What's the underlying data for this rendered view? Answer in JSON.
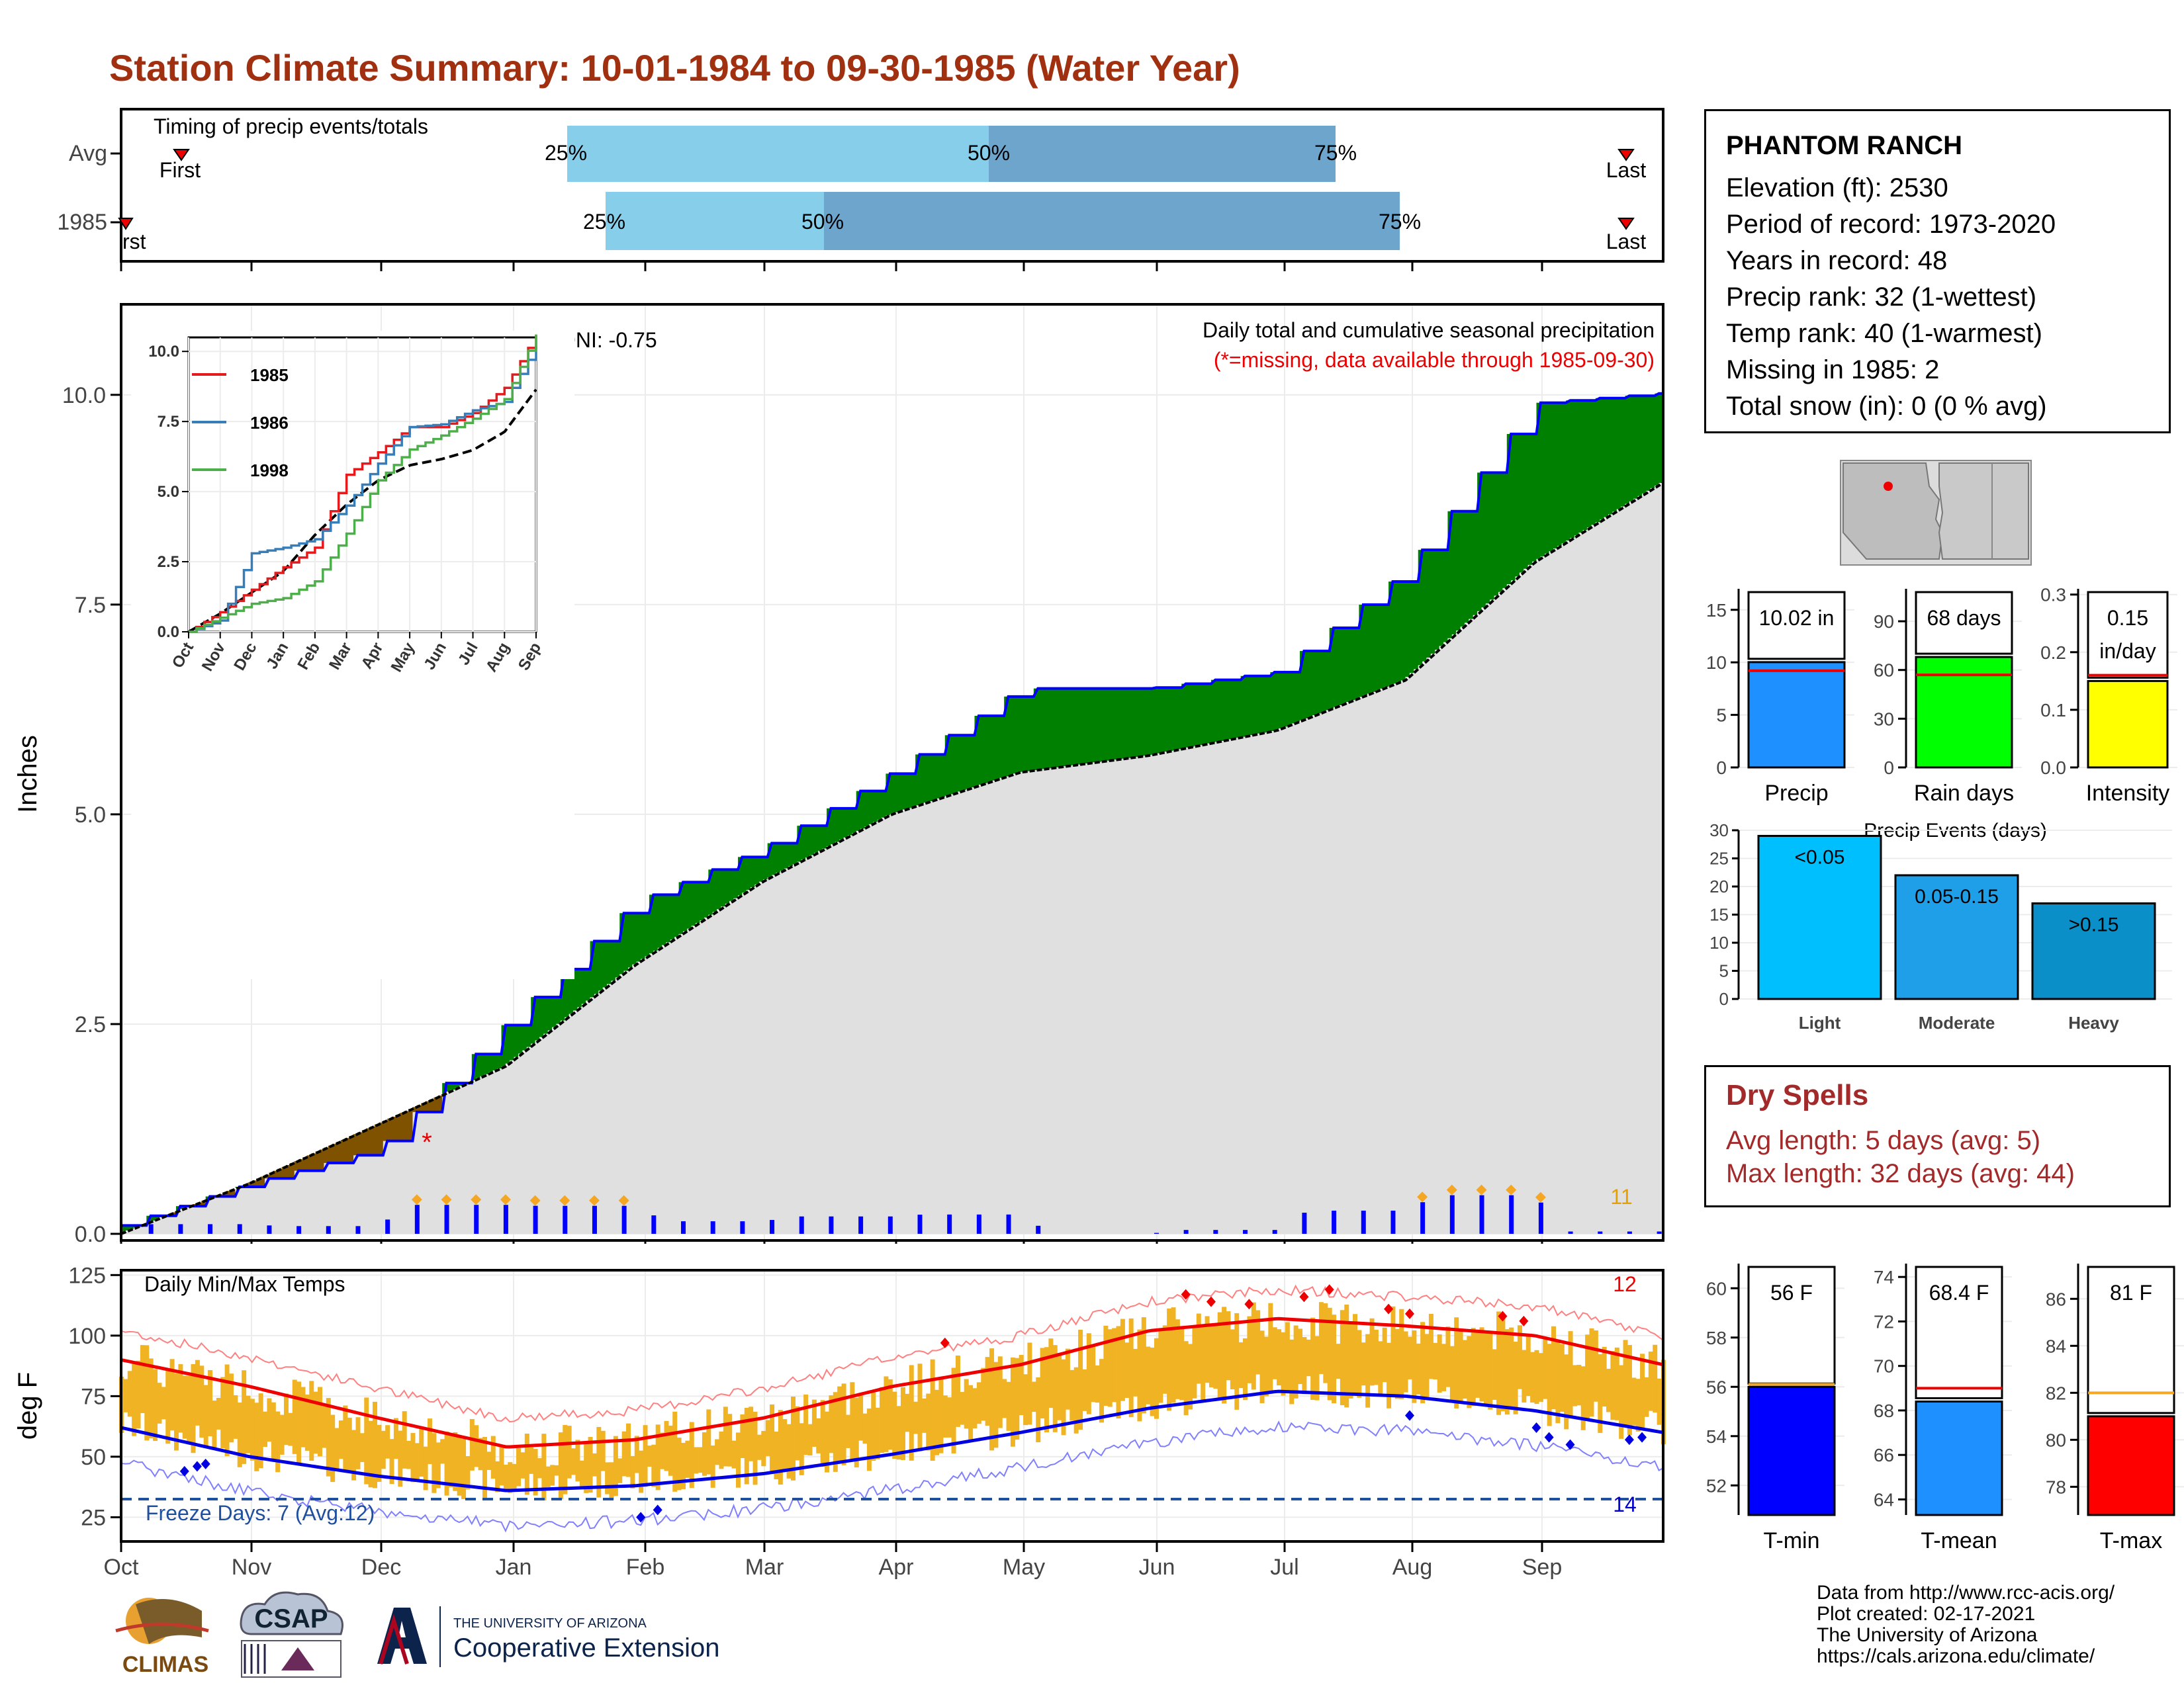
{
  "title": "Station Climate Summary: 10-01-1984 to 09-30-1985 (Water Year)",
  "station": {
    "name": "PHANTOM RANCH",
    "lines": [
      "Elevation (ft): 2530",
      "Period of record: 1973-2020",
      "Years in record: 48",
      "Precip rank: 32 (1-wettest)",
      "Temp rank: 40 (1-warmest)",
      "Missing in 1985: 2",
      "Total snow (in): 0 (0 % avg)"
    ]
  },
  "timing": {
    "title": "Timing of precip events/totals",
    "rows": [
      {
        "label": "Avg",
        "first": "First",
        "last": "Last",
        "p25": "25%",
        "p50": "50%",
        "p75": "75%"
      },
      {
        "label": "1985",
        "first": "rst",
        "last": "Last",
        "p25": "25%",
        "p50": "50%",
        "p75": "75%"
      }
    ]
  },
  "precip_panel": {
    "ylabel": "Inches",
    "yticks": [
      "0.0",
      "2.5",
      "5.0",
      "7.5",
      "10.0"
    ],
    "note1": "Daily total and cumulative seasonal precipitation",
    "note2": "(*=missing, data available through 1985-09-30)",
    "oni": "ONI: -0.75",
    "count_label": "11"
  },
  "inset": {
    "legend": [
      "1985",
      "1986",
      "1998"
    ],
    "yticks": [
      "0.0",
      "2.5",
      "5.0",
      "7.5",
      "10.0"
    ],
    "xticks": [
      "Oct",
      "Nov",
      "Dec",
      "Jan",
      "Feb",
      "Mar",
      "Apr",
      "May",
      "Jun",
      "Jul",
      "Aug",
      "Sep"
    ]
  },
  "temp_panel": {
    "ylabel": "deg F",
    "title": "Daily Min/Max Temps",
    "yticks": [
      "25",
      "50",
      "75",
      "100",
      "125"
    ],
    "freeze": "Freeze Days: 7 (Avg:12)",
    "count_hot": "12",
    "count_cold": "14"
  },
  "months": [
    "Oct",
    "Nov",
    "Dec",
    "Jan",
    "Feb",
    "Mar",
    "Apr",
    "May",
    "Jun",
    "Jul",
    "Aug",
    "Sep"
  ],
  "dry_spells": {
    "title": "Dry Spells",
    "avg": "Avg length: 5 days (avg: 5)",
    "max": "Max length: 32 days (avg: 44)"
  },
  "bars": {
    "precip": {
      "label": "Precip",
      "value_label": "10.02 in",
      "yticks": [
        "0",
        "5",
        "10",
        "15"
      ]
    },
    "raindays": {
      "label": "Rain days",
      "value_label": "68 days",
      "yticks": [
        "0",
        "30",
        "60",
        "90"
      ]
    },
    "intensity": {
      "label": "Intensity",
      "value_label1": "0.15",
      "value_label2": "in/day",
      "yticks": [
        "0.0",
        "0.1",
        "0.2",
        "0.3"
      ]
    }
  },
  "events": {
    "title": "Precip Events (days)",
    "yticks": [
      "0",
      "5",
      "10",
      "15",
      "20",
      "25",
      "30"
    ],
    "categories": [
      "Light",
      "Moderate",
      "Heavy"
    ],
    "labels": [
      "<0.05",
      "0.05-0.15",
      ">0.15"
    ]
  },
  "tbars": {
    "tmin": {
      "label": "T-min",
      "value_label": "56 F",
      "yticks": [
        "52",
        "54",
        "56",
        "58",
        "60"
      ]
    },
    "tmean": {
      "label": "T-mean",
      "value_label": "68.4 F",
      "yticks": [
        "64",
        "66",
        "68",
        "70",
        "72",
        "74"
      ]
    },
    "tmax": {
      "label": "T-max",
      "value_label": "81 F",
      "yticks": [
        "78",
        "80",
        "82",
        "84",
        "86"
      ]
    }
  },
  "footer": [
    "Data from http://www.rcc-acis.org/",
    "Plot created: 02-17-2021",
    "The University of Arizona",
    "https://cals.arizona.edu/climate/"
  ],
  "logos": {
    "climas": "CLIMAS",
    "csap": "CSAP",
    "ua_small": "THE UNIVERSITY OF ARIZONA",
    "ua_big": "Cooperative Extension"
  },
  "chart_data": [
    {
      "type": "area",
      "name": "cumulative precipitation",
      "x": [
        "Oct",
        "Nov",
        "Dec",
        "Jan",
        "Feb",
        "Mar",
        "Apr",
        "May",
        "Jun",
        "Jul",
        "Aug",
        "Sep",
        "Sep-end"
      ],
      "series": [
        {
          "name": "1985",
          "values": [
            0.1,
            0.6,
            1.0,
            2.5,
            3.95,
            4.6,
            5.5,
            6.5,
            6.5,
            6.7,
            7.9,
            9.9,
            10.02
          ]
        },
        {
          "name": "Avg",
          "values": [
            0.0,
            0.6,
            1.3,
            2.0,
            3.2,
            4.2,
            5.0,
            5.5,
            5.7,
            6.0,
            6.6,
            8.0,
            8.95
          ]
        }
      ],
      "ylim": [
        0,
        11
      ],
      "ylabel": "Inches"
    },
    {
      "type": "line",
      "name": "inset cumulative",
      "series": [
        {
          "name": "1985",
          "values": [
            0,
            0.7,
            1.5,
            2.3,
            3.0,
            5.6,
            6.4,
            7.3,
            7.3,
            7.8,
            8.7,
            10.6
          ]
        },
        {
          "name": "1986",
          "values": [
            0,
            0.4,
            2.8,
            3.0,
            3.3,
            4.5,
            6.0,
            7.3,
            7.4,
            7.9,
            8.2,
            10.2
          ]
        },
        {
          "name": "1998",
          "values": [
            0,
            0.5,
            1.0,
            1.2,
            1.8,
            3.5,
            5.4,
            6.5,
            7.0,
            7.6,
            8.3,
            10.6
          ]
        }
      ],
      "ylim": [
        0,
        10.5
      ]
    },
    {
      "type": "line",
      "name": "daily temperatures",
      "series": [
        {
          "name": "avg max",
          "values": [
            90,
            79,
            66,
            54,
            57,
            66,
            79,
            88,
            102,
            107,
            104,
            100
          ]
        },
        {
          "name": "avg min",
          "values": [
            62,
            50,
            42,
            36,
            38,
            43,
            51,
            60,
            70,
            77,
            75,
            69
          ]
        }
      ],
      "ylim": [
        15,
        127
      ],
      "ylabel": "deg F"
    },
    {
      "type": "bar",
      "categories": [
        "Precip"
      ],
      "values": [
        10.02
      ],
      "avg": 9.2,
      "ylim": [
        0,
        17
      ]
    },
    {
      "type": "bar",
      "categories": [
        "Rain days"
      ],
      "values": [
        68
      ],
      "avg": 57,
      "ylim": [
        0,
        110
      ]
    },
    {
      "type": "bar",
      "categories": [
        "Intensity"
      ],
      "values": [
        0.15
      ],
      "avg": 0.16,
      "ylim": [
        0,
        0.31
      ]
    },
    {
      "type": "bar",
      "categories": [
        "Light",
        "Moderate",
        "Heavy"
      ],
      "values": [
        29,
        22,
        17
      ],
      "ylim": [
        0,
        30
      ]
    },
    {
      "type": "bar",
      "categories": [
        "T-min"
      ],
      "values": [
        56
      ],
      "avg": 56.1,
      "ylim": [
        50.8,
        61
      ]
    },
    {
      "type": "bar",
      "categories": [
        "T-mean"
      ],
      "values": [
        68.4
      ],
      "avg": 69.0,
      "ylim": [
        63.3,
        74.6
      ]
    },
    {
      "type": "bar",
      "categories": [
        "T-max"
      ],
      "values": [
        81
      ],
      "avg": 82,
      "ylim": [
        76.8,
        87.5
      ]
    }
  ]
}
